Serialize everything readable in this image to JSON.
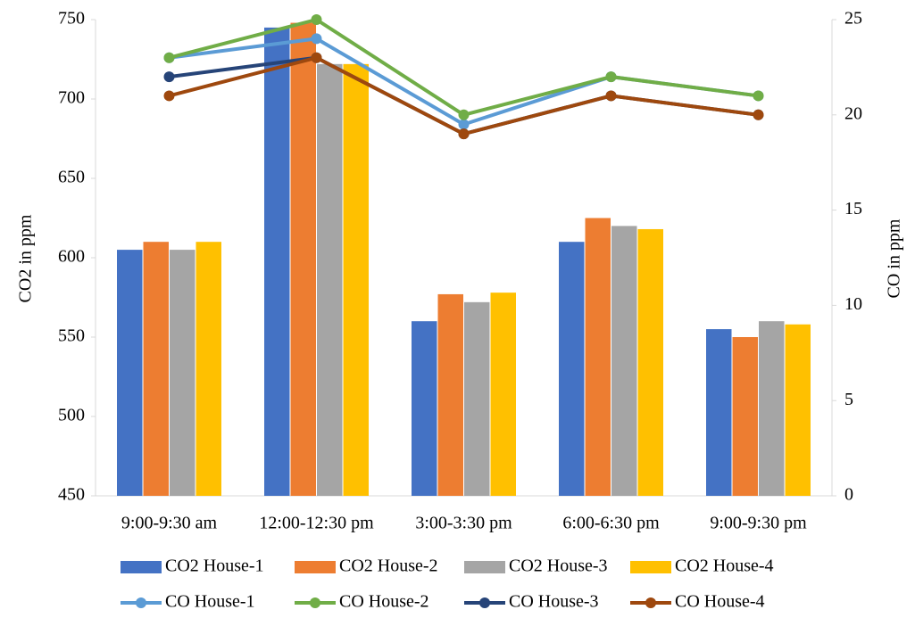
{
  "chart_data": {
    "type": "bar",
    "categories": [
      "9:00-9:30 am",
      "12:00-12:30 pm",
      "3:00-3:30 pm",
      "6:00-6:30 pm",
      "9:00-9:30 pm"
    ],
    "ylabel": "CO2 in ppm",
    "y2label": "CO in ppm",
    "ylim": [
      450,
      750
    ],
    "yticks": [
      450,
      500,
      550,
      600,
      650,
      700,
      750
    ],
    "y2lim": [
      0,
      25
    ],
    "y2ticks": [
      0,
      5,
      10,
      15,
      20,
      25
    ],
    "grid": false,
    "legend": "bottom",
    "series": [
      {
        "name": "CO2 House-1",
        "color": "#4472c4",
        "type": "bar",
        "values": [
          605,
          745,
          560,
          610,
          555
        ]
      },
      {
        "name": "CO2 House-2",
        "color": "#ed7d31",
        "type": "bar",
        "values": [
          610,
          748,
          577,
          625,
          550
        ]
      },
      {
        "name": "CO2 House-3",
        "color": "#a5a5a5",
        "type": "bar",
        "values": [
          605,
          722,
          572,
          620,
          560
        ]
      },
      {
        "name": "CO2 House-4",
        "color": "#ffc000",
        "type": "bar",
        "values": [
          610,
          722,
          578,
          618,
          558
        ]
      },
      {
        "name": "CO House-1",
        "color": "#5b9bd5",
        "type": "line",
        "axis": "y2",
        "values": [
          23,
          24,
          19.5,
          22,
          21
        ]
      },
      {
        "name": "CO House-2",
        "color": "#70ad47",
        "type": "line",
        "axis": "y2",
        "values": [
          23,
          25,
          20,
          22,
          21
        ]
      },
      {
        "name": "CO House-3",
        "color": "#264478",
        "type": "line",
        "axis": "y2",
        "values": [
          22,
          23,
          19,
          21,
          20
        ]
      },
      {
        "name": "CO House-4",
        "color": "#9e480e",
        "type": "line",
        "axis": "y2",
        "values": [
          21,
          23,
          19,
          21,
          20
        ]
      }
    ]
  }
}
